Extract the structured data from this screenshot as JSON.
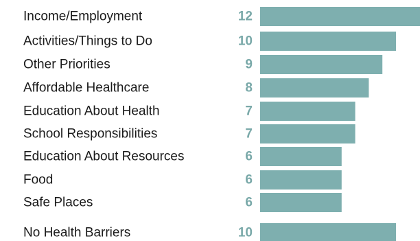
{
  "chart_data": {
    "type": "bar",
    "orientation": "horizontal",
    "title": "",
    "xlabel": "",
    "ylabel": "",
    "categories": [
      "Income/Employment",
      "Activities/Things to Do",
      "Other Priorities",
      "Affordable Healthcare",
      "Education About Health",
      "School Responsibilities",
      "Education About Resources",
      "Food",
      "Safe Places",
      "No Health Barriers"
    ],
    "values": [
      12,
      10,
      9,
      8,
      7,
      7,
      6,
      6,
      6,
      10
    ],
    "xlim": [
      0,
      12
    ],
    "grid": false,
    "legend": "none",
    "colors": {
      "bar": "#7eafaf",
      "value_label": "#7aa9a9",
      "category_label": "#1a1a1a"
    }
  }
}
